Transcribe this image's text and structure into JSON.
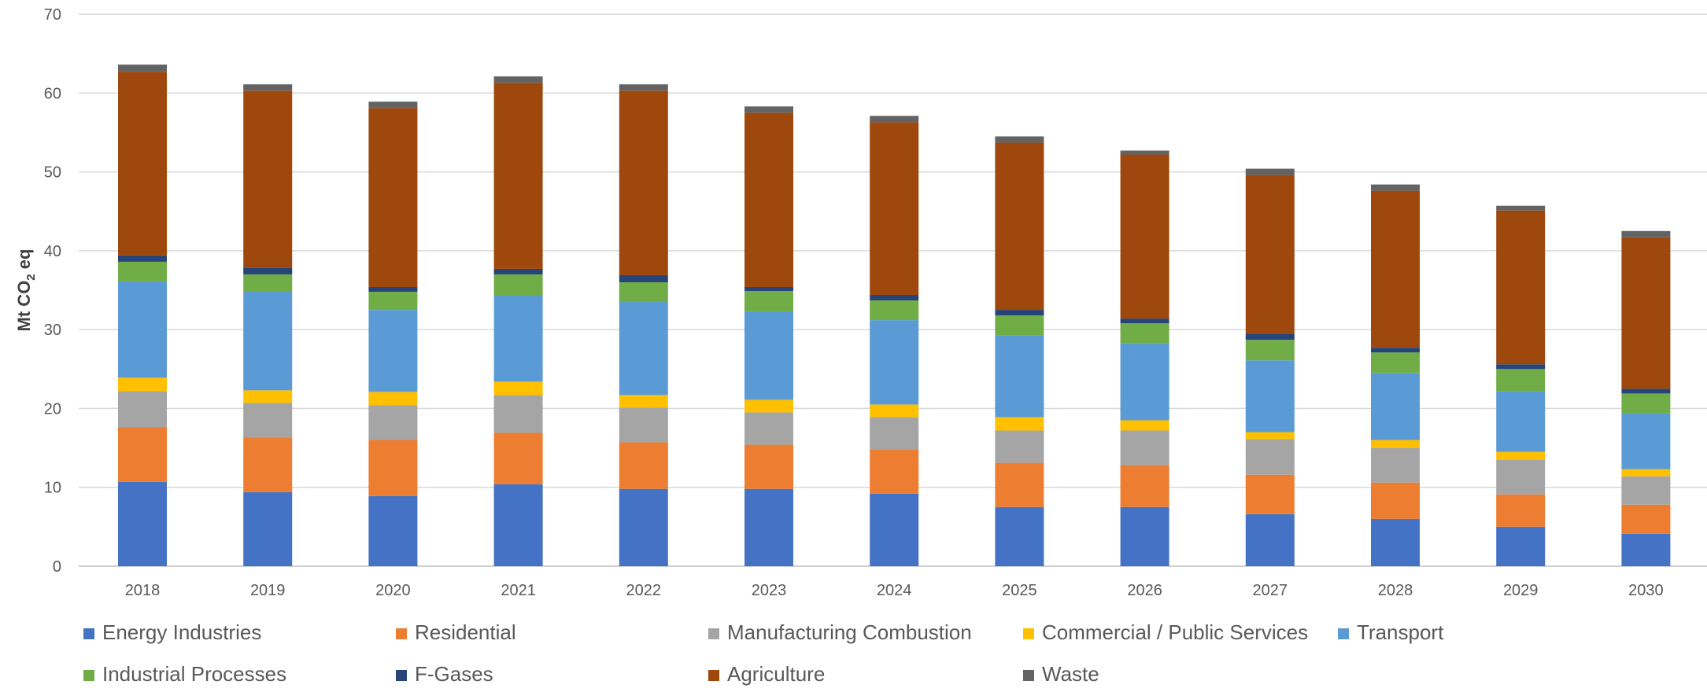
{
  "chart_data": {
    "type": "bar",
    "stacked": true,
    "title": "",
    "xlabel": "",
    "ylabel": "Mt CO2 eq",
    "ylabel_parts": {
      "main": "Mt CO",
      "sub": "2",
      "tail": " eq"
    },
    "ylim": [
      0,
      70
    ],
    "yticks": [
      0,
      10,
      20,
      30,
      40,
      50,
      60,
      70
    ],
    "grid": true,
    "legend_position": "bottom",
    "categories": [
      "2018",
      "2019",
      "2020",
      "2021",
      "2022",
      "2023",
      "2024",
      "2025",
      "2026",
      "2027",
      "2028",
      "2029",
      "2030"
    ],
    "series": [
      {
        "name": "Energy Industries",
        "color": "#4472C4",
        "values": [
          10.7,
          9.4,
          8.9,
          10.4,
          9.8,
          9.8,
          9.2,
          7.5,
          7.5,
          6.6,
          6.0,
          5.0,
          4.1
        ]
      },
      {
        "name": "Residential",
        "color": "#ED7D31",
        "values": [
          6.9,
          6.9,
          7.1,
          6.5,
          5.9,
          5.6,
          5.6,
          5.6,
          5.3,
          5.0,
          4.6,
          4.1,
          3.7
        ]
      },
      {
        "name": "Manufacturing Combustion",
        "color": "#A5A5A5",
        "values": [
          4.6,
          4.4,
          4.4,
          4.8,
          4.4,
          4.1,
          4.1,
          4.1,
          4.4,
          4.5,
          4.4,
          4.4,
          3.6
        ]
      },
      {
        "name": "Commercial / Public Services",
        "color": "#FFC000",
        "values": [
          1.7,
          1.6,
          1.7,
          1.7,
          1.6,
          1.6,
          1.6,
          1.7,
          1.3,
          0.9,
          1.0,
          1.0,
          0.9
        ]
      },
      {
        "name": "Transport",
        "color": "#5B9BD5",
        "values": [
          12.2,
          12.5,
          10.4,
          10.9,
          11.8,
          11.2,
          10.7,
          10.4,
          9.8,
          9.1,
          8.5,
          7.7,
          7.1
        ]
      },
      {
        "name": "Industrial Processes",
        "color": "#70AD47",
        "values": [
          2.5,
          2.2,
          2.3,
          2.7,
          2.5,
          2.6,
          2.5,
          2.5,
          2.5,
          2.6,
          2.6,
          2.8,
          2.5
        ]
      },
      {
        "name": "F-Gases",
        "color": "#264478",
        "values": [
          0.8,
          0.8,
          0.6,
          0.7,
          0.9,
          0.5,
          0.7,
          0.7,
          0.6,
          0.8,
          0.6,
          0.6,
          0.6
        ]
      },
      {
        "name": "Agriculture",
        "color": "#9E480E",
        "values": [
          23.3,
          22.5,
          22.7,
          23.6,
          23.4,
          22.1,
          21.9,
          21.2,
          20.8,
          20.1,
          19.9,
          19.5,
          19.2
        ]
      },
      {
        "name": "Waste",
        "color": "#636363",
        "values": [
          0.9,
          0.8,
          0.8,
          0.8,
          0.8,
          0.8,
          0.8,
          0.8,
          0.5,
          0.8,
          0.8,
          0.6,
          0.8
        ]
      }
    ]
  }
}
